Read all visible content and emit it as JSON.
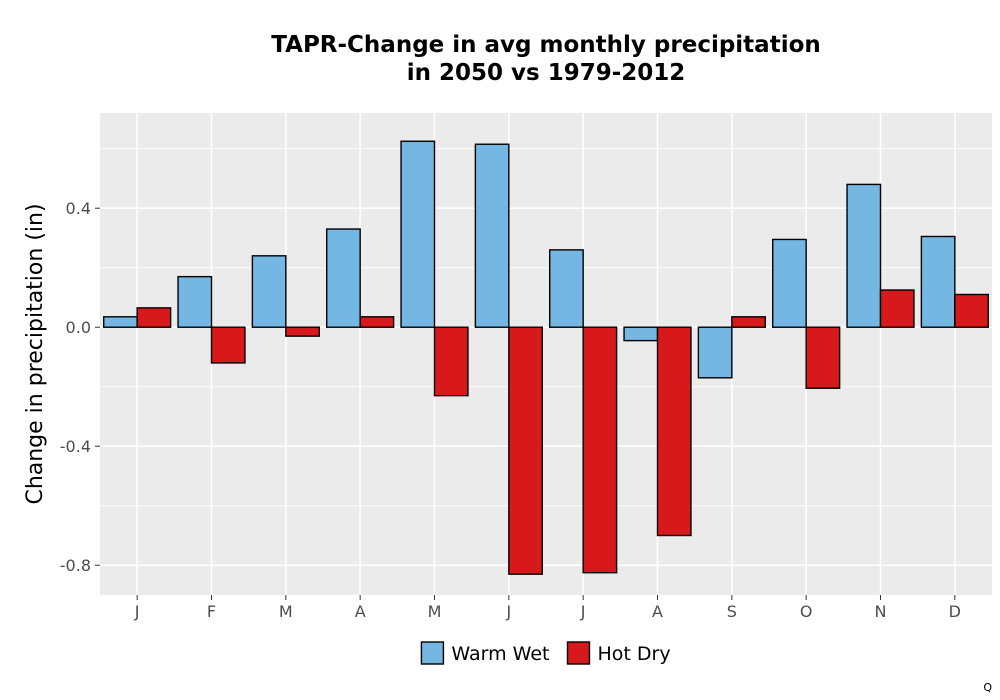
{
  "chart_data": {
    "type": "bar",
    "title": [
      "TAPR-Change in avg monthly precipitation",
      "in 2050 vs 1979-2012"
    ],
    "xlabel": "",
    "ylabel": "Change in precipitation (in)",
    "categories": [
      "J",
      "F",
      "M",
      "A",
      "M",
      "J",
      "J",
      "A",
      "S",
      "O",
      "N",
      "D"
    ],
    "series": [
      {
        "name": "Warm Wet",
        "color": "#74b7e2",
        "values": [
          0.035,
          0.17,
          0.24,
          0.33,
          0.625,
          0.615,
          0.26,
          -0.045,
          -0.17,
          0.295,
          0.48,
          0.305
        ]
      },
      {
        "name": "Hot Dry",
        "color": "#d7191c",
        "values": [
          0.065,
          -0.12,
          -0.03,
          0.035,
          -0.23,
          -0.83,
          -0.825,
          -0.7,
          0.035,
          -0.205,
          0.125,
          0.11
        ]
      }
    ],
    "ylim": [
      -0.9,
      0.72
    ],
    "yticks": [
      -0.8,
      -0.4,
      0.0,
      0.4
    ],
    "ytick_labels": [
      "-0.8",
      "-0.4",
      "0.0",
      "0.4"
    ],
    "grid": true,
    "legend_position": "bottom",
    "panel_background": "#ebebeb",
    "gridline_color": "#ffffff"
  },
  "corner_text": "Q"
}
